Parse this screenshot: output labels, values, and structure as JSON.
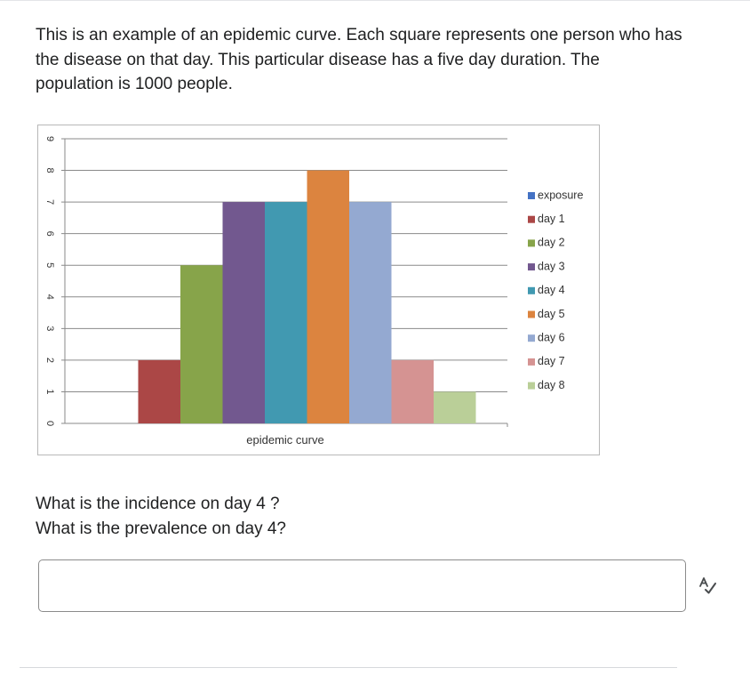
{
  "question": {
    "line1": "This is an example of an epidemic curve. Each square represents one person who has",
    "line2": "the disease on that day. This particular disease has a five day duration. The",
    "line3": "population is 1000 people."
  },
  "follow_up": {
    "line1": "What is the incidence on day 4 ?",
    "line2": "What is the prevalence on day 4?"
  },
  "answer": {
    "value": "",
    "placeholder": ""
  },
  "spellcheck_icon": "spellcheck-icon",
  "chart_data": {
    "type": "bar",
    "xlabel": "epidemic curve",
    "ylim": [
      0,
      9
    ],
    "yticks": [
      "0",
      "1",
      "2",
      "3",
      "4",
      "5",
      "6",
      "7",
      "8",
      "9"
    ],
    "grid": true,
    "legend_placement": "right",
    "series": [
      {
        "name": "exposure",
        "value": 0,
        "color": "#4472c4"
      },
      {
        "name": "day 1",
        "value": 2,
        "color": "#ab4746"
      },
      {
        "name": "day 2",
        "value": 5,
        "color": "#87a44a"
      },
      {
        "name": "day 3",
        "value": 7,
        "color": "#72588f"
      },
      {
        "name": "day 4",
        "value": 7,
        "color": "#4199b1"
      },
      {
        "name": "day 5",
        "value": 8,
        "color": "#dc843f"
      },
      {
        "name": "day 6",
        "value": 7,
        "color": "#94a9d1"
      },
      {
        "name": "day 7",
        "value": 2,
        "color": "#d59392"
      },
      {
        "name": "day 8",
        "value": 1,
        "color": "#bacf98"
      }
    ]
  }
}
